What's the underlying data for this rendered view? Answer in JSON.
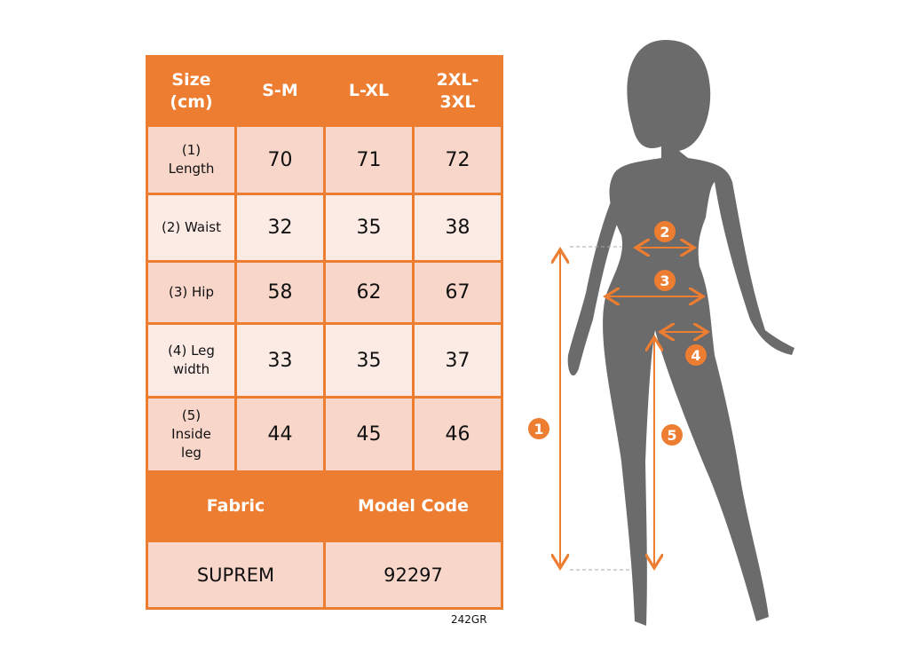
{
  "table": {
    "header": [
      "Size (cm)",
      "S-M",
      "L-XL",
      "2XL-3XL"
    ],
    "rows": [
      {
        "label": "(1) Length",
        "values": [
          "70",
          "71",
          "72"
        ]
      },
      {
        "label": "(2) Waist",
        "values": [
          "32",
          "35",
          "38"
        ]
      },
      {
        "label": "(3) Hip",
        "values": [
          "58",
          "62",
          "67"
        ]
      },
      {
        "label": "(4) Leg width",
        "values": [
          "33",
          "35",
          "37"
        ]
      },
      {
        "label": "(5) Inside leg",
        "values": [
          "44",
          "45",
          "46"
        ]
      }
    ],
    "footer_header": [
      "Fabric",
      "Model Code"
    ],
    "footer_values": [
      "SUPREM",
      "92297"
    ]
  },
  "product_code": "242GR",
  "markers": [
    "1",
    "2",
    "3",
    "4",
    "5"
  ],
  "colors": {
    "accent": "#ed7d31",
    "row_dark": "#f8d6ca",
    "row_light": "#fcebe5",
    "silhouette": "#6b6b6b"
  }
}
